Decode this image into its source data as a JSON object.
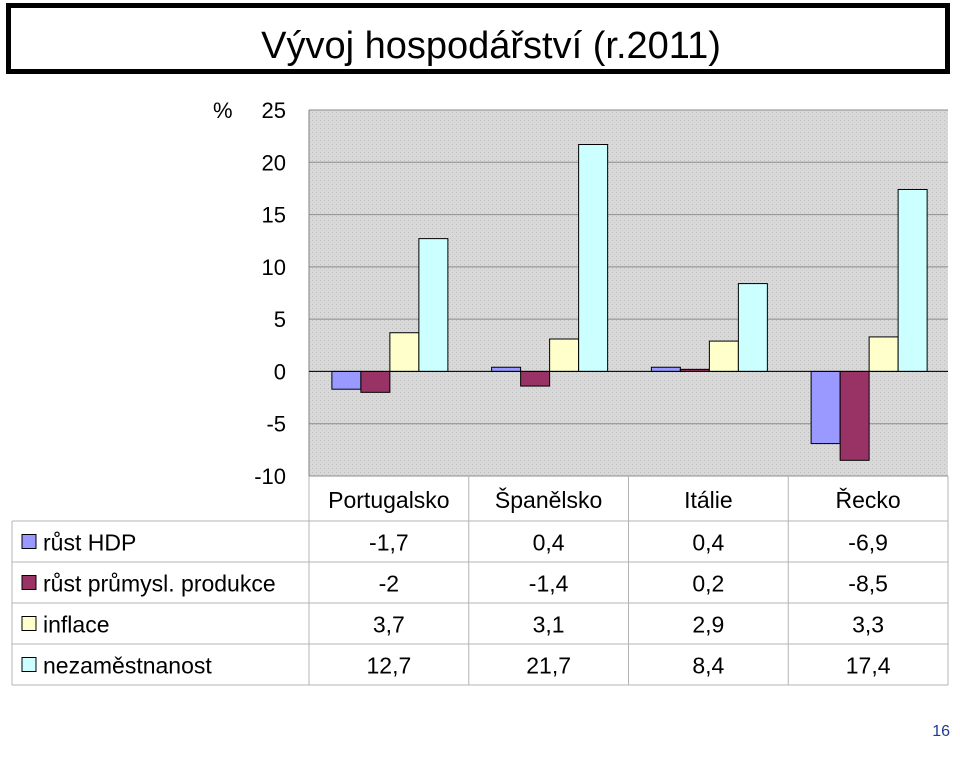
{
  "slide": {
    "title": "Vývoj hospodářství (r.2011)",
    "page_number": "16"
  },
  "chart_data": {
    "type": "bar",
    "title": "Vývoj hospodářství (r.2011)",
    "ylabel": "%",
    "ylim": [
      -10,
      25
    ],
    "yticks": [
      25,
      20,
      15,
      10,
      5,
      0,
      -5,
      -10
    ],
    "grid": true,
    "legend": "data-table",
    "categories": [
      "Portugalsko",
      "Španělsko",
      "Itálie",
      "Řecko"
    ],
    "series": [
      {
        "name": "růst HDP",
        "color": "#9999ff",
        "values": [
          -1.7,
          0.4,
          0.4,
          -6.9
        ],
        "labels": [
          "-1,7",
          "0,4",
          "0,4",
          "-6,9"
        ]
      },
      {
        "name": "růst průmysl. produkce",
        "color": "#993366",
        "values": [
          -2,
          -1.4,
          0.2,
          -8.5
        ],
        "labels": [
          "-2",
          "-1,4",
          "0,2",
          "-8,5"
        ]
      },
      {
        "name": "inflace",
        "color": "#ffffcc",
        "values": [
          3.7,
          3.1,
          2.9,
          3.3
        ],
        "labels": [
          "3,7",
          "3,1",
          "2,9",
          "3,3"
        ]
      },
      {
        "name": "nezaměstnanost",
        "color": "#ccffff",
        "values": [
          12.7,
          21.7,
          8.4,
          17.4
        ],
        "labels": [
          "12,7",
          "21,7",
          "8,4",
          "17,4"
        ]
      }
    ]
  }
}
